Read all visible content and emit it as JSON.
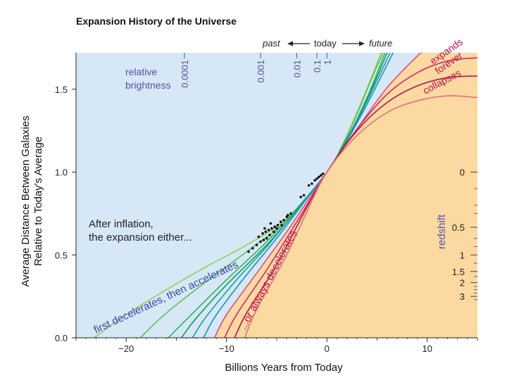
{
  "chart_data": {
    "type": "line",
    "title": "Expansion History of the Universe",
    "xlabel": "Billions Years from Today",
    "ylabel_line1": "Average Distance Between Galaxies",
    "ylabel_line2": "Relative to Today's Average",
    "xlim": [
      -25,
      15
    ],
    "ylim": [
      0,
      1.72
    ],
    "x_ticks": [
      {
        "value": -20,
        "label": "−20"
      },
      {
        "value": -10,
        "label": "−10"
      },
      {
        "value": 0,
        "label": "0"
      },
      {
        "value": 10,
        "label": "10"
      }
    ],
    "y_ticks": [
      {
        "value": 0.0,
        "label": "0.0"
      },
      {
        "value": 0.5,
        "label": "0.5"
      },
      {
        "value": 1.0,
        "label": "1.0"
      },
      {
        "value": 1.5,
        "label": "1.5"
      }
    ],
    "timeline": {
      "past": "past",
      "today": "today",
      "future": "future"
    },
    "brightness": {
      "label_line1": "relative",
      "label_line2": "brightness",
      "ticks": [
        {
          "label": "0.0001",
          "x": -14.2
        },
        {
          "label": "0.001",
          "x": -6.6
        },
        {
          "label": "0.01",
          "x": -3.0
        },
        {
          "label": "0.1",
          "x": -1.0
        },
        {
          "label": "1",
          "x": 0.0
        }
      ]
    },
    "redshift": {
      "label": "redshift",
      "ticks": [
        {
          "label": "0",
          "y": 1.0
        },
        {
          "label": "0.5",
          "y": 0.667
        },
        {
          "label": "1",
          "y": 0.5
        },
        {
          "label": "1.5",
          "y": 0.4
        },
        {
          "label": "2",
          "y": 0.333
        },
        {
          "label": "3",
          "y": 0.25
        }
      ],
      "minor_y": [
        0.9,
        0.8,
        0.75,
        0.6,
        0.55,
        0.45,
        0.37,
        0.31,
        0.29,
        0.27,
        0.23
      ]
    },
    "annotations": {
      "after_inflation_line1": "After inflation,",
      "after_inflation_line2": "the expansion either...",
      "first_decelerates": "first decelerates, then accelerates",
      "always_decelerates": "...or always decelerates",
      "expands": "expands",
      "forever": "forever",
      "collapses": "collapses"
    },
    "regions": {
      "accelerating_color": "#d6e8f6",
      "decelerating_color": "#fcd9a1"
    },
    "series": [
      {
        "color": "#8fcf5a",
        "points": [
          [
            -23.2,
            0
          ],
          [
            -20,
            0.14
          ],
          [
            -16,
            0.29
          ],
          [
            -12,
            0.43
          ],
          [
            -8,
            0.56
          ],
          [
            -4,
            0.72
          ],
          [
            0,
            1
          ],
          [
            1.5,
            1.16
          ],
          [
            3,
            1.36
          ],
          [
            4.5,
            1.58
          ],
          [
            5.4,
            1.72
          ]
        ]
      },
      {
        "color": "#5fbf4a",
        "points": [
          [
            -18.6,
            0
          ],
          [
            -16,
            0.15
          ],
          [
            -12,
            0.34
          ],
          [
            -8,
            0.52
          ],
          [
            -4,
            0.71
          ],
          [
            0,
            1
          ],
          [
            1.5,
            1.155
          ],
          [
            3,
            1.35
          ],
          [
            4.5,
            1.57
          ],
          [
            5.6,
            1.72
          ]
        ]
      },
      {
        "color": "#2db35a",
        "points": [
          [
            -15.8,
            0
          ],
          [
            -14,
            0.11
          ],
          [
            -10,
            0.35
          ],
          [
            -6,
            0.58
          ],
          [
            -3,
            0.78
          ],
          [
            0,
            1
          ],
          [
            2,
            1.2
          ],
          [
            4,
            1.45
          ],
          [
            5.8,
            1.72
          ]
        ]
      },
      {
        "color": "#129a62",
        "points": [
          [
            -14.5,
            0
          ],
          [
            -13,
            0.12
          ],
          [
            -10,
            0.32
          ],
          [
            -6,
            0.56
          ],
          [
            -3,
            0.77
          ],
          [
            0,
            1
          ],
          [
            2,
            1.2
          ],
          [
            4,
            1.44
          ],
          [
            6,
            1.72
          ]
        ]
      },
      {
        "color": "#16a394",
        "points": [
          [
            -13.4,
            0
          ],
          [
            -12,
            0.13
          ],
          [
            -9,
            0.35
          ],
          [
            -6,
            0.55
          ],
          [
            -3,
            0.77
          ],
          [
            0,
            1
          ],
          [
            2,
            1.19
          ],
          [
            4,
            1.43
          ],
          [
            6.3,
            1.72
          ]
        ]
      },
      {
        "color": "#1b8fc4",
        "points": [
          [
            -12.3,
            0
          ],
          [
            -11,
            0.14
          ],
          [
            -8,
            0.38
          ],
          [
            -5,
            0.6
          ],
          [
            -2.5,
            0.8
          ],
          [
            0,
            1
          ],
          [
            2,
            1.19
          ],
          [
            4,
            1.41
          ],
          [
            6.6,
            1.72
          ]
        ]
      },
      {
        "color": "#e04a8a",
        "points": [
          [
            -11.2,
            0
          ],
          [
            -10,
            0.14
          ],
          [
            -7,
            0.39
          ],
          [
            -4,
            0.64
          ],
          [
            -2,
            0.82
          ],
          [
            0,
            1
          ],
          [
            3,
            1.26
          ],
          [
            6,
            1.51
          ],
          [
            9,
            1.7
          ],
          [
            9.5,
            1.72
          ]
        ]
      },
      {
        "color": "#d0266c",
        "points": [
          [
            -10.2,
            0
          ],
          [
            -9,
            0.14
          ],
          [
            -6,
            0.41
          ],
          [
            -3,
            0.7
          ],
          [
            -1.5,
            0.85
          ],
          [
            0,
            1
          ],
          [
            3,
            1.26
          ],
          [
            6,
            1.47
          ],
          [
            9,
            1.6
          ],
          [
            12,
            1.67
          ],
          [
            15,
            1.69
          ]
        ]
      },
      {
        "color": "#b3154f",
        "points": [
          [
            -9.2,
            0
          ],
          [
            -8,
            0.15
          ],
          [
            -5,
            0.44
          ],
          [
            -2.5,
            0.73
          ],
          [
            0,
            1
          ],
          [
            3,
            1.25
          ],
          [
            6,
            1.42
          ],
          [
            9,
            1.52
          ],
          [
            12,
            1.57
          ],
          [
            15,
            1.58
          ]
        ]
      },
      {
        "color": "#e8707a",
        "points": [
          [
            -8.2,
            0
          ],
          [
            -7,
            0.17
          ],
          [
            -4,
            0.5
          ],
          [
            -2,
            0.76
          ],
          [
            0,
            1
          ],
          [
            3,
            1.22
          ],
          [
            6,
            1.36
          ],
          [
            9,
            1.43
          ],
          [
            12,
            1.46
          ],
          [
            15,
            1.45
          ]
        ]
      }
    ],
    "observations": [
      [
        -1.8,
        0.92
      ],
      [
        -1.5,
        0.93
      ],
      [
        -1.2,
        0.95
      ],
      [
        -1.0,
        0.96
      ],
      [
        -0.8,
        0.97
      ],
      [
        -0.6,
        0.98
      ],
      [
        -0.4,
        0.99
      ],
      [
        -2.3,
        0.86
      ],
      [
        -2.6,
        0.85
      ],
      [
        -4.0,
        0.73
      ],
      [
        -4.3,
        0.71
      ],
      [
        -4.6,
        0.7
      ],
      [
        -4.9,
        0.68
      ],
      [
        -5.2,
        0.67
      ],
      [
        -5.5,
        0.66
      ],
      [
        -5.8,
        0.65
      ],
      [
        -6.1,
        0.64
      ],
      [
        -6.4,
        0.63
      ],
      [
        -4.5,
        0.68
      ],
      [
        -5.0,
        0.66
      ],
      [
        -5.3,
        0.64
      ],
      [
        -5.7,
        0.62
      ],
      [
        -6.0,
        0.6
      ],
      [
        -6.3,
        0.59
      ],
      [
        -6.6,
        0.58
      ],
      [
        -7.0,
        0.56
      ],
      [
        -7.4,
        0.54
      ],
      [
        -3.6,
        0.75
      ],
      [
        -3.9,
        0.74
      ],
      [
        -5.6,
        0.69
      ],
      [
        -6.2,
        0.66
      ],
      [
        -6.8,
        0.61
      ],
      [
        -7.8,
        0.52
      ]
    ]
  }
}
